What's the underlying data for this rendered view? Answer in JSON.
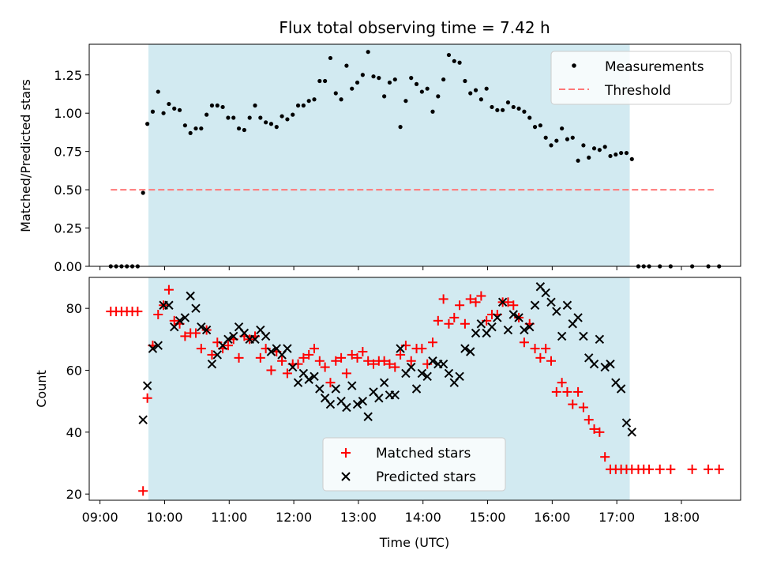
{
  "chart_data": [
    {
      "type": "scatter",
      "title": "Flux total observing time = 7.42 h",
      "ylabel": "Matched/Predicted stars",
      "xlabel": "",
      "xlim": [
        "08:50",
        "18:55"
      ],
      "ylim": [
        0,
        1.45
      ],
      "yticks": [
        0.0,
        0.25,
        0.5,
        0.75,
        1.0,
        1.25
      ],
      "ytick_labels": [
        "0.00",
        "0.25",
        "0.50",
        "0.75",
        "1.00",
        "1.25"
      ],
      "grid": false,
      "legend": "top-right",
      "shaded_span": {
        "start": "09:45",
        "end": "17:12",
        "color": "#add8e6"
      },
      "series": [
        {
          "name": "Measurements",
          "marker": "dot",
          "color": "#000000",
          "x": [
            "09:10",
            "09:15",
            "09:20",
            "09:25",
            "09:30",
            "09:35",
            "09:40",
            "09:44",
            "09:49",
            "09:54",
            "09:59",
            "10:04",
            "10:09",
            "10:14",
            "10:19",
            "10:24",
            "10:29",
            "10:34",
            "10:39",
            "10:44",
            "10:49",
            "10:54",
            "10:59",
            "11:04",
            "11:09",
            "11:14",
            "11:19",
            "11:24",
            "11:29",
            "11:34",
            "11:39",
            "11:44",
            "11:49",
            "11:54",
            "11:59",
            "12:04",
            "12:09",
            "12:14",
            "12:19",
            "12:24",
            "12:29",
            "12:34",
            "12:39",
            "12:44",
            "12:49",
            "12:54",
            "12:59",
            "13:04",
            "13:09",
            "13:14",
            "13:19",
            "13:24",
            "13:29",
            "13:34",
            "13:39",
            "13:44",
            "13:49",
            "13:54",
            "13:59",
            "14:04",
            "14:09",
            "14:14",
            "14:19",
            "14:24",
            "14:29",
            "14:34",
            "14:39",
            "14:44",
            "14:49",
            "14:54",
            "14:59",
            "15:04",
            "15:09",
            "15:14",
            "15:19",
            "15:24",
            "15:29",
            "15:34",
            "15:39",
            "15:44",
            "15:49",
            "15:54",
            "15:59",
            "16:04",
            "16:09",
            "16:14",
            "16:19",
            "16:24",
            "16:29",
            "16:34",
            "16:39",
            "16:44",
            "16:49",
            "16:54",
            "16:59",
            "17:04",
            "17:09",
            "17:14",
            "17:20",
            "17:25",
            "17:30",
            "17:40",
            "17:50",
            "18:10",
            "18:25",
            "18:35"
          ],
          "y": [
            0,
            0,
            0,
            0,
            0,
            0,
            0.48,
            0.93,
            1.01,
            1.14,
            1.0,
            1.06,
            1.03,
            1.02,
            0.92,
            0.87,
            0.9,
            0.9,
            0.99,
            1.05,
            1.05,
            1.04,
            0.97,
            0.97,
            0.9,
            0.89,
            0.97,
            1.05,
            0.97,
            0.94,
            0.93,
            0.91,
            0.98,
            0.96,
            0.99,
            1.05,
            1.05,
            1.08,
            1.09,
            1.21,
            1.21,
            1.36,
            1.13,
            1.09,
            1.31,
            1.16,
            1.2,
            1.25,
            1.4,
            1.24,
            1.23,
            1.11,
            1.2,
            1.22,
            0.91,
            1.08,
            1.23,
            1.19,
            1.14,
            1.16,
            1.01,
            1.11,
            1.22,
            1.38,
            1.34,
            1.33,
            1.21,
            1.13,
            1.15,
            1.09,
            1.16,
            1.04,
            1.02,
            1.02,
            1.07,
            1.04,
            1.03,
            1.01,
            0.97,
            0.91,
            0.92,
            0.84,
            0.79,
            0.82,
            0.9,
            0.83,
            0.84,
            0.69,
            0.79,
            0.71,
            0.77,
            0.76,
            0.78,
            0.72,
            0.73,
            0.74,
            0.74,
            0.7,
            0,
            0,
            0,
            0,
            0,
            0,
            0,
            0
          ]
        },
        {
          "name": "Threshold",
          "marker": "dashed-line",
          "color": "#ff7777",
          "x": [
            "09:10",
            "18:30"
          ],
          "y": [
            0.5,
            0.5
          ]
        }
      ]
    },
    {
      "type": "scatter",
      "title": "",
      "ylabel": "Count",
      "xlabel": "Time (UTC)",
      "xlim": [
        "08:50",
        "18:55"
      ],
      "ylim": [
        18,
        90
      ],
      "yticks": [
        20,
        40,
        60,
        80
      ],
      "ytick_labels": [
        "20",
        "40",
        "60",
        "80"
      ],
      "xticks": [
        "09:00",
        "10:00",
        "11:00",
        "12:00",
        "13:00",
        "14:00",
        "15:00",
        "16:00",
        "17:00",
        "18:00"
      ],
      "grid": false,
      "legend": "lower-center",
      "shaded_span": {
        "start": "09:45",
        "end": "17:12",
        "color": "#add8e6"
      },
      "series": [
        {
          "name": "Matched stars",
          "marker": "plus",
          "color": "#ff0000",
          "x": [
            "09:10",
            "09:15",
            "09:20",
            "09:25",
            "09:30",
            "09:35",
            "09:40",
            "09:44",
            "09:49",
            "09:54",
            "09:59",
            "10:04",
            "10:09",
            "10:14",
            "10:19",
            "10:24",
            "10:29",
            "10:34",
            "10:39",
            "10:44",
            "10:49",
            "10:54",
            "10:59",
            "11:04",
            "11:09",
            "11:14",
            "11:19",
            "11:24",
            "11:29",
            "11:34",
            "11:39",
            "11:44",
            "11:49",
            "11:54",
            "11:59",
            "12:04",
            "12:09",
            "12:14",
            "12:19",
            "12:24",
            "12:29",
            "12:34",
            "12:39",
            "12:44",
            "12:49",
            "12:54",
            "12:59",
            "13:04",
            "13:09",
            "13:14",
            "13:19",
            "13:24",
            "13:29",
            "13:34",
            "13:39",
            "13:44",
            "13:49",
            "13:54",
            "13:59",
            "14:04",
            "14:09",
            "14:14",
            "14:19",
            "14:24",
            "14:29",
            "14:34",
            "14:39",
            "14:44",
            "14:49",
            "14:54",
            "14:59",
            "15:04",
            "15:09",
            "15:14",
            "15:19",
            "15:24",
            "15:29",
            "15:34",
            "15:39",
            "15:44",
            "15:49",
            "15:54",
            "15:59",
            "16:04",
            "16:09",
            "16:14",
            "16:19",
            "16:24",
            "16:29",
            "16:34",
            "16:39",
            "16:44",
            "16:49",
            "16:54",
            "16:59",
            "17:04",
            "17:09",
            "17:14",
            "17:20",
            "17:25",
            "17:30",
            "17:40",
            "17:50",
            "18:10",
            "18:25",
            "18:35"
          ],
          "y": [
            79,
            79,
            79,
            79,
            79,
            79,
            21,
            51,
            68,
            78,
            81,
            86,
            76,
            75,
            71,
            72,
            72,
            67,
            73,
            65,
            69,
            67,
            68,
            70,
            64,
            71,
            70,
            71,
            64,
            67,
            60,
            66,
            63,
            59,
            62,
            62,
            64,
            65,
            67,
            63,
            61,
            56,
            63,
            64,
            59,
            65,
            64,
            66,
            63,
            62,
            63,
            63,
            62,
            61,
            65,
            68,
            63,
            67,
            67,
            62,
            69,
            76,
            83,
            75,
            77,
            81,
            75,
            83,
            82,
            84,
            76,
            78,
            78,
            82,
            82,
            81,
            77,
            69,
            75,
            67,
            64,
            67,
            63,
            53,
            56,
            53,
            49,
            53,
            48,
            44,
            41,
            40,
            32,
            28,
            28,
            28,
            28,
            28,
            28,
            28,
            28,
            28,
            28,
            28,
            28,
            28
          ]
        },
        {
          "name": "Predicted stars",
          "marker": "x",
          "color": "#000000",
          "x": [
            "09:40",
            "09:44",
            "09:49",
            "09:54",
            "09:59",
            "10:04",
            "10:09",
            "10:14",
            "10:19",
            "10:24",
            "10:29",
            "10:34",
            "10:39",
            "10:44",
            "10:49",
            "10:54",
            "10:59",
            "11:04",
            "11:09",
            "11:14",
            "11:19",
            "11:24",
            "11:29",
            "11:34",
            "11:39",
            "11:44",
            "11:49",
            "11:54",
            "11:59",
            "12:04",
            "12:09",
            "12:14",
            "12:19",
            "12:24",
            "12:29",
            "12:34",
            "12:39",
            "12:44",
            "12:49",
            "12:54",
            "12:59",
            "13:04",
            "13:09",
            "13:14",
            "13:19",
            "13:24",
            "13:29",
            "13:34",
            "13:39",
            "13:44",
            "13:49",
            "13:54",
            "13:59",
            "14:04",
            "14:09",
            "14:14",
            "14:19",
            "14:24",
            "14:29",
            "14:34",
            "14:39",
            "14:44",
            "14:49",
            "14:54",
            "14:59",
            "15:04",
            "15:09",
            "15:14",
            "15:19",
            "15:24",
            "15:29",
            "15:34",
            "15:39",
            "15:44",
            "15:49",
            "15:54",
            "15:59",
            "16:04",
            "16:09",
            "16:14",
            "16:19",
            "16:24",
            "16:29",
            "16:34",
            "16:39",
            "16:44",
            "16:49",
            "16:54",
            "16:59",
            "17:04",
            "17:09",
            "17:14"
          ],
          "y": [
            44,
            55,
            67,
            68,
            81,
            81,
            74,
            76,
            77,
            84,
            80,
            74,
            73,
            62,
            65,
            68,
            70,
            71,
            74,
            72,
            70,
            70,
            73,
            71,
            66,
            67,
            65,
            67,
            61,
            56,
            59,
            57,
            58,
            54,
            51,
            49,
            54,
            50,
            48,
            55,
            49,
            50,
            45,
            53,
            51,
            56,
            52,
            52,
            67,
            59,
            61,
            54,
            59,
            58,
            63,
            62,
            62,
            59,
            56,
            58,
            67,
            66,
            72,
            75,
            72,
            74,
            77,
            82,
            73,
            78,
            77,
            73,
            74,
            81,
            87,
            85,
            82,
            79,
            71,
            81,
            75,
            77,
            71,
            64,
            62,
            70,
            61,
            62,
            56,
            54,
            43,
            40
          ]
        }
      ]
    }
  ]
}
